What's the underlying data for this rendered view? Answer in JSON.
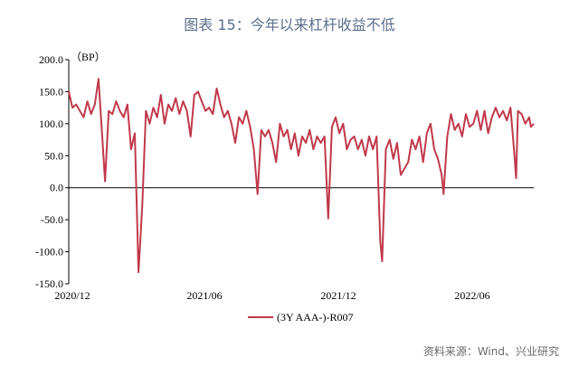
{
  "title": "图表 15：今年以来杠杆收益不低",
  "source": "资料来源：Wind、兴业研究",
  "colors": {
    "series": "#c0394b",
    "axis": "#000000",
    "title": "#5b6f8c"
  },
  "chart_data": {
    "type": "line",
    "title": "图表 15：今年以来杠杆收益不低",
    "ylabel": "（BP）",
    "ylim": [
      -150,
      200
    ],
    "yticks": [
      "200.0",
      "150.0",
      "100.0",
      "50.0",
      "0.0",
      "-50.0",
      "-100.0",
      "-150.0"
    ],
    "xticks": [
      "2020/12",
      "2021/06",
      "2021/12",
      "2022/06"
    ],
    "grid": false,
    "legend": "bottom-center",
    "series": [
      {
        "name": "(3Y AAA-)-R007",
        "x_index_range": [
          0,
          100
        ],
        "points": [
          [
            0,
            150
          ],
          [
            0.8,
            125
          ],
          [
            1.6,
            130
          ],
          [
            2.4,
            120
          ],
          [
            3.2,
            110
          ],
          [
            4,
            135
          ],
          [
            4.8,
            115
          ],
          [
            5.6,
            130
          ],
          [
            6.4,
            170
          ],
          [
            7.2,
            80
          ],
          [
            7.8,
            10
          ],
          [
            8.6,
            120
          ],
          [
            9.4,
            115
          ],
          [
            10.2,
            135
          ],
          [
            11,
            120
          ],
          [
            11.8,
            110
          ],
          [
            12.6,
            130
          ],
          [
            13.4,
            60
          ],
          [
            14.2,
            85
          ],
          [
            15,
            -132
          ],
          [
            15.8,
            -30
          ],
          [
            16.6,
            120
          ],
          [
            17.4,
            100
          ],
          [
            18.2,
            125
          ],
          [
            19,
            110
          ],
          [
            19.8,
            145
          ],
          [
            20.6,
            100
          ],
          [
            21.4,
            130
          ],
          [
            22.2,
            120
          ],
          [
            23,
            140
          ],
          [
            23.8,
            115
          ],
          [
            24.6,
            135
          ],
          [
            25.4,
            120
          ],
          [
            26.2,
            80
          ],
          [
            27,
            145
          ],
          [
            27.8,
            150
          ],
          [
            28.6,
            135
          ],
          [
            29.4,
            120
          ],
          [
            30.2,
            125
          ],
          [
            31,
            115
          ],
          [
            31.8,
            155
          ],
          [
            32.6,
            130
          ],
          [
            33.4,
            110
          ],
          [
            34.2,
            120
          ],
          [
            35,
            100
          ],
          [
            35.8,
            70
          ],
          [
            36.6,
            110
          ],
          [
            37.4,
            100
          ],
          [
            38.2,
            120
          ],
          [
            39,
            95
          ],
          [
            39.8,
            60
          ],
          [
            40.6,
            -10
          ],
          [
            41.4,
            90
          ],
          [
            42.2,
            80
          ],
          [
            43,
            90
          ],
          [
            43.8,
            70
          ],
          [
            44.6,
            40
          ],
          [
            45.4,
            100
          ],
          [
            46.2,
            80
          ],
          [
            47,
            90
          ],
          [
            47.8,
            60
          ],
          [
            48.6,
            85
          ],
          [
            49.4,
            50
          ],
          [
            50.2,
            80
          ],
          [
            51,
            70
          ],
          [
            51.8,
            90
          ],
          [
            52.6,
            60
          ],
          [
            53.4,
            80
          ],
          [
            54.2,
            70
          ],
          [
            55,
            80
          ],
          [
            55.8,
            -48
          ],
          [
            56.6,
            95
          ],
          [
            57.4,
            110
          ],
          [
            58.2,
            85
          ],
          [
            59,
            100
          ],
          [
            59.8,
            60
          ],
          [
            60.6,
            75
          ],
          [
            61.4,
            80
          ],
          [
            62.2,
            60
          ],
          [
            63,
            75
          ],
          [
            63.8,
            50
          ],
          [
            64.6,
            80
          ],
          [
            65.4,
            60
          ],
          [
            66.2,
            80
          ],
          [
            67,
            -85
          ],
          [
            67.4,
            -115
          ],
          [
            68.2,
            60
          ],
          [
            69,
            75
          ],
          [
            69.8,
            45
          ],
          [
            70.6,
            70
          ],
          [
            71.4,
            20
          ],
          [
            72.2,
            30
          ],
          [
            73,
            40
          ],
          [
            73.8,
            75
          ],
          [
            74.6,
            60
          ],
          [
            75.4,
            80
          ],
          [
            76.2,
            40
          ],
          [
            77,
            85
          ],
          [
            77.8,
            100
          ],
          [
            78.6,
            60
          ],
          [
            79.4,
            45
          ],
          [
            80.2,
            20
          ],
          [
            80.6,
            -10
          ],
          [
            81.4,
            80
          ],
          [
            82.2,
            115
          ],
          [
            83,
            90
          ],
          [
            83.8,
            100
          ],
          [
            84.6,
            80
          ],
          [
            85.4,
            115
          ],
          [
            86.2,
            95
          ],
          [
            87,
            100
          ],
          [
            87.8,
            120
          ],
          [
            88.6,
            90
          ],
          [
            89.4,
            120
          ],
          [
            90.2,
            85
          ],
          [
            91,
            110
          ],
          [
            91.8,
            125
          ],
          [
            92.6,
            110
          ],
          [
            93.4,
            120
          ],
          [
            94.2,
            105
          ],
          [
            95,
            125
          ],
          [
            95.8,
            55
          ],
          [
            96.2,
            15
          ],
          [
            96.6,
            120
          ],
          [
            97.4,
            115
          ],
          [
            98.2,
            100
          ],
          [
            99,
            110
          ],
          [
            99.4,
            95
          ],
          [
            100,
            100
          ]
        ]
      }
    ]
  }
}
